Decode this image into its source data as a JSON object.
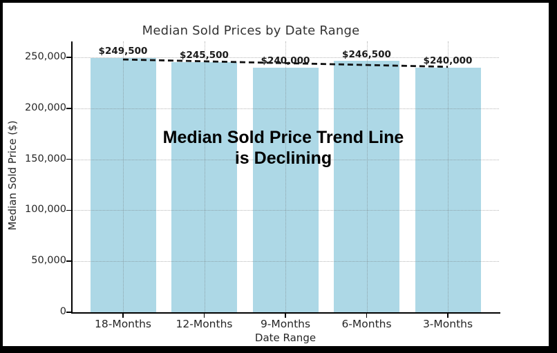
{
  "chart_data": {
    "type": "bar",
    "title": "Median Sold Prices by Date Range",
    "xlabel": "Date Range",
    "ylabel": "Median Sold Price ($)",
    "categories": [
      "18-Months",
      "12-Months",
      "9-Months",
      "6-Months",
      "3-Months"
    ],
    "values": [
      249500,
      245500,
      240000,
      246500,
      240000
    ],
    "bar_value_labels": [
      "$249,500",
      "$245,500",
      "$240,000",
      "$246,500",
      "$240,000"
    ],
    "ylim": [
      0,
      262000
    ],
    "yticks": [
      0,
      50000,
      100000,
      150000,
      200000,
      250000
    ],
    "ytick_labels": [
      "0",
      "50,000",
      "100,000",
      "150,000",
      "200,000",
      "250,000"
    ],
    "grid": true,
    "legend": false,
    "annotation": {
      "line1": "Median Sold Price Trend Line",
      "line2": "is Declining"
    },
    "trend_line": {
      "style": "dashed",
      "start_value": 247900,
      "end_value": 240700
    },
    "colors": {
      "bar_fill": "#ADD8E6",
      "trend_line": "#111111",
      "title_text": "#333333",
      "tick_text": "#262626",
      "value_label_text": "#1a1a1a",
      "annotation_text": "#000000",
      "frame_border": "#000000"
    }
  }
}
